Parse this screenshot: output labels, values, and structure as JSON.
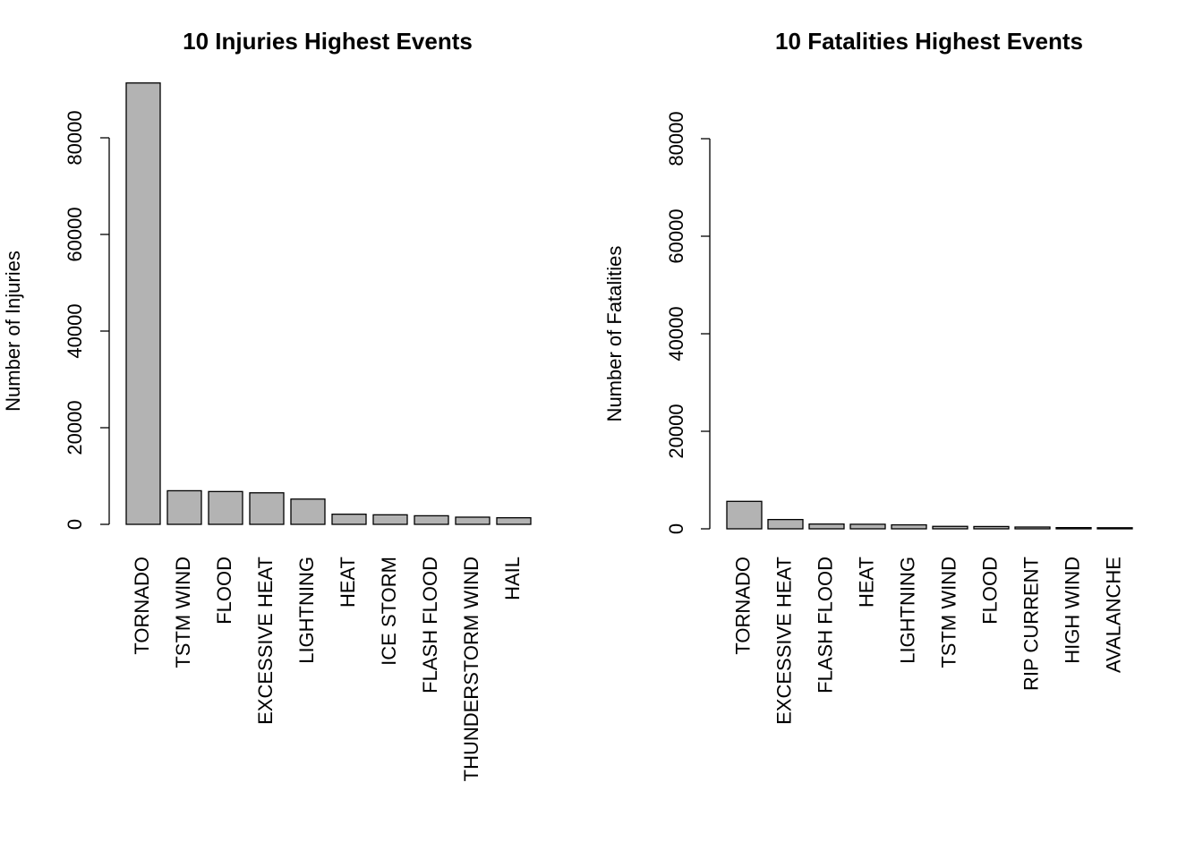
{
  "chart_data": [
    {
      "type": "bar",
      "title": "10 Injuries Highest Events",
      "y_label": "Number of Injuries",
      "categories": [
        "TORNADO",
        "TSTM WIND",
        "FLOOD",
        "EXCESSIVE HEAT",
        "LIGHTNING",
        "HEAT",
        "ICE STORM",
        "FLASH FLOOD",
        "THUNDERSTORM WIND",
        "HAIL"
      ],
      "values": [
        91346,
        6957,
        6789,
        6525,
        5230,
        2100,
        1975,
        1777,
        1488,
        1361
      ],
      "color": "#b3b3b3",
      "ylim": [
        0,
        95000
      ],
      "yticks": [
        0,
        20000,
        40000,
        60000,
        80000
      ]
    },
    {
      "type": "bar",
      "title": "10 Fatalities Highest Events",
      "y_label": "Number of Fatalities",
      "categories": [
        "TORNADO",
        "EXCESSIVE HEAT",
        "FLASH FLOOD",
        "HEAT",
        "LIGHTNING",
        "TSTM WIND",
        "FLOOD",
        "RIP CURRENT",
        "HIGH WIND",
        "AVALANCHE"
      ],
      "values": [
        5633,
        1903,
        978,
        937,
        816,
        504,
        470,
        368,
        248,
        224
      ],
      "color": "#b3b3b3",
      "ylim": [
        0,
        95000
      ],
      "yticks": [
        0,
        20000,
        40000,
        60000,
        80000
      ]
    }
  ]
}
